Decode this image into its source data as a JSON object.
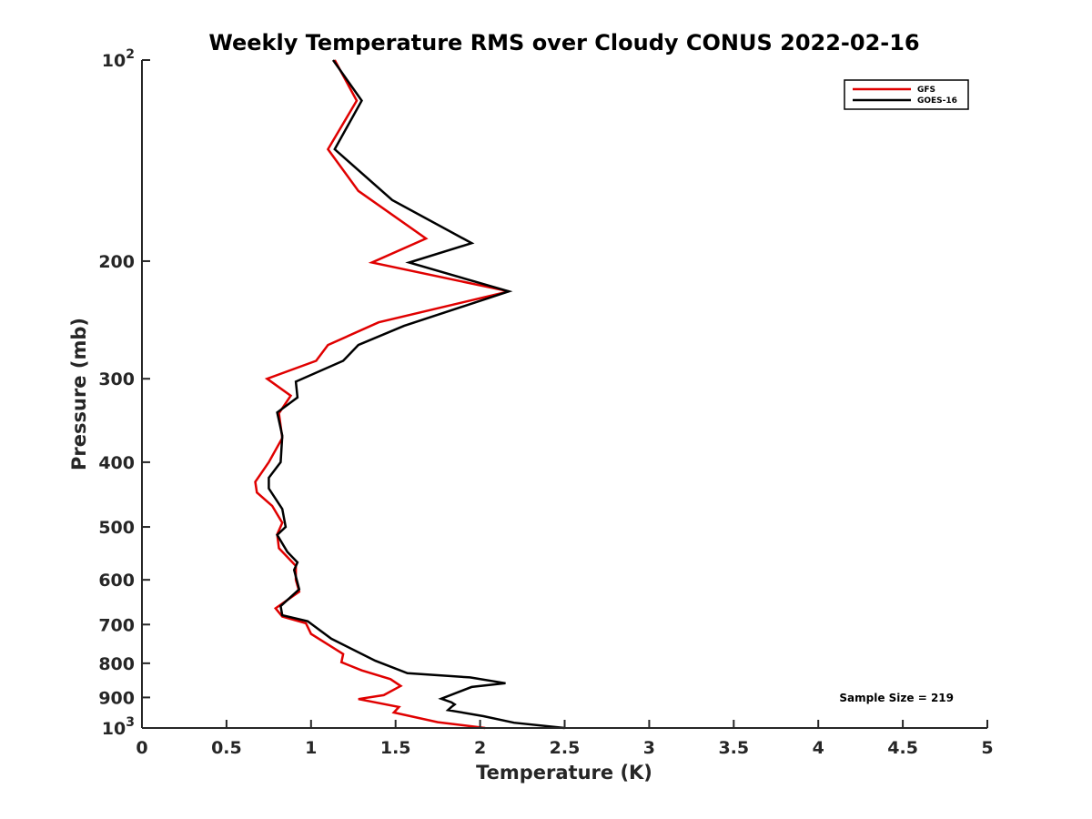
{
  "chart_data": {
    "type": "line",
    "title": "Weekly Temperature RMS over Cloudy CONUS 2022-02-16",
    "xlabel": "Temperature (K)",
    "ylabel": "Pressure (mb)",
    "xlim": [
      0,
      5
    ],
    "ylim": [
      100,
      1000
    ],
    "y_scale": "log",
    "y_reversed": true,
    "grid": false,
    "legend_position": "top-right",
    "x_ticks": [
      "0",
      "0.5",
      "1",
      "1.5",
      "2",
      "2.5",
      "3",
      "3.5",
      "4",
      "4.5",
      "5"
    ],
    "x_tick_values": [
      0,
      0.5,
      1,
      1.5,
      2,
      2.5,
      3,
      3.5,
      4,
      4.5,
      5
    ],
    "y_ticks": [
      {
        "value": 100,
        "base": "10",
        "exp": "2"
      },
      {
        "value": 200,
        "label": "200"
      },
      {
        "value": 300,
        "label": "300"
      },
      {
        "value": 400,
        "label": "400"
      },
      {
        "value": 500,
        "label": "500"
      },
      {
        "value": 600,
        "label": "600"
      },
      {
        "value": 700,
        "label": "700"
      },
      {
        "value": 800,
        "label": "800"
      },
      {
        "value": 900,
        "label": "900"
      },
      {
        "value": 1000,
        "base": "10",
        "exp": "3"
      }
    ],
    "series": [
      {
        "name": "GFS",
        "color": "#e00000",
        "points": [
          [
            1.14,
            100
          ],
          [
            1.27,
            115
          ],
          [
            1.1,
            136
          ],
          [
            1.28,
            157
          ],
          [
            1.68,
            185
          ],
          [
            1.36,
            201
          ],
          [
            2.17,
            222
          ],
          [
            1.4,
            247
          ],
          [
            1.1,
            267
          ],
          [
            1.03,
            282
          ],
          [
            0.74,
            300
          ],
          [
            0.88,
            318
          ],
          [
            0.81,
            338
          ],
          [
            0.83,
            368
          ],
          [
            0.75,
            400
          ],
          [
            0.67,
            428
          ],
          [
            0.68,
            444
          ],
          [
            0.77,
            465
          ],
          [
            0.83,
            493
          ],
          [
            0.8,
            513
          ],
          [
            0.81,
            538
          ],
          [
            0.91,
            572
          ],
          [
            0.91,
            600
          ],
          [
            0.93,
            625
          ],
          [
            0.79,
            662
          ],
          [
            0.83,
            681
          ],
          [
            0.97,
            697
          ],
          [
            1.0,
            723
          ],
          [
            1.19,
            775
          ],
          [
            1.18,
            797
          ],
          [
            1.3,
            820
          ],
          [
            1.47,
            845
          ],
          [
            1.53,
            865
          ],
          [
            1.43,
            893
          ],
          [
            1.28,
            905
          ],
          [
            1.52,
            930
          ],
          [
            1.49,
            948
          ],
          [
            1.75,
            980
          ],
          [
            2.03,
            1000
          ]
        ]
      },
      {
        "name": "GOES-16",
        "color": "#000000",
        "points": [
          [
            1.13,
            100
          ],
          [
            1.3,
            115
          ],
          [
            1.14,
            136
          ],
          [
            1.48,
            162
          ],
          [
            1.95,
            188
          ],
          [
            1.58,
            201
          ],
          [
            2.17,
            222
          ],
          [
            1.55,
            250
          ],
          [
            1.28,
            267
          ],
          [
            1.19,
            282
          ],
          [
            0.91,
            303
          ],
          [
            0.92,
            320
          ],
          [
            0.8,
            337
          ],
          [
            0.83,
            365
          ],
          [
            0.82,
            400
          ],
          [
            0.75,
            422
          ],
          [
            0.75,
            438
          ],
          [
            0.83,
            470
          ],
          [
            0.85,
            500
          ],
          [
            0.8,
            514
          ],
          [
            0.86,
            545
          ],
          [
            0.92,
            565
          ],
          [
            0.9,
            580
          ],
          [
            0.93,
            620
          ],
          [
            0.82,
            657
          ],
          [
            0.83,
            678
          ],
          [
            0.98,
            692
          ],
          [
            1.12,
            735
          ],
          [
            1.38,
            793
          ],
          [
            1.57,
            828
          ],
          [
            1.94,
            840
          ],
          [
            2.15,
            857
          ],
          [
            1.95,
            868
          ],
          [
            1.77,
            904
          ],
          [
            1.83,
            915
          ],
          [
            1.85,
            922
          ],
          [
            1.83,
            930
          ],
          [
            1.81,
            940
          ],
          [
            2.02,
            960
          ],
          [
            2.2,
            982
          ],
          [
            2.5,
            1000
          ]
        ]
      }
    ],
    "annotation": "Sample Size = 219"
  }
}
